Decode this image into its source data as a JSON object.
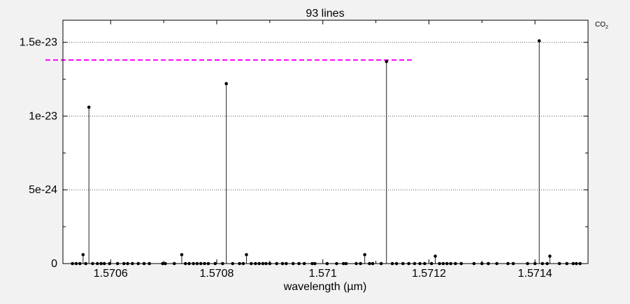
{
  "chart_data": {
    "type": "scatter",
    "style": "stem",
    "title": "93 lines",
    "xlabel": "wavelength (µm)",
    "ylabel": "",
    "legend_label": "CO",
    "legend_subscript": "2",
    "xlim": [
      1.57051,
      1.5715
    ],
    "ylim": [
      0,
      1.65e-23
    ],
    "x_ticks": [
      1.5706,
      1.5708,
      1.571,
      1.5712,
      1.5714
    ],
    "x_tick_labels": [
      "1.5706",
      "1.5708",
      "1.571",
      "1.5712",
      "1.5714"
    ],
    "y_ticks": [
      0,
      5e-24,
      1e-23,
      1.5e-23
    ],
    "y_tick_labels": [
      "0",
      "5e-24",
      "1e-23",
      "1.5e-23"
    ],
    "y_minor_ticks": [
      2.5e-24,
      7.5e-24,
      1.25e-23
    ],
    "grid": "horizontal-dotted",
    "threshold": {
      "value": 1.38e-23,
      "x_start": 1.57051,
      "x_end": 1.57117,
      "color": "#ff00ff",
      "style": "dashed"
    },
    "marker_color": "#000000",
    "series": [
      {
        "x": [
          1.570528,
          1.570535,
          1.570542,
          1.570548,
          1.570553,
          1.570559,
          1.570566,
          1.570575,
          1.570582,
          1.570588,
          1.570598,
          1.570613,
          1.570625,
          1.570632,
          1.570641,
          1.570652,
          1.570663,
          1.570673,
          1.570698,
          1.570703,
          1.57072,
          1.570734,
          1.570741,
          1.570748,
          1.570756,
          1.570763,
          1.57077,
          1.570777,
          1.570784,
          1.570797,
          1.570811,
          1.570818,
          1.57083,
          1.570843,
          1.57085,
          1.570856,
          1.570865,
          1.570873,
          1.57088,
          1.570887,
          1.570893,
          1.5709,
          1.570913,
          1.570924,
          1.570931,
          1.570944,
          1.570955,
          1.570965,
          1.57098,
          1.570985,
          1.571008,
          1.571026,
          1.571039,
          1.571044,
          1.571063,
          1.571071,
          1.571079,
          1.571088,
          1.571094,
          1.57111,
          1.57112,
          1.571131,
          1.571139,
          1.571151,
          1.571162,
          1.571173,
          1.571183,
          1.571192,
          1.571205,
          1.571212,
          1.57122,
          1.571227,
          1.571234,
          1.571241,
          1.57125,
          1.571261,
          1.571285,
          1.5713,
          1.571312,
          1.571328,
          1.571349,
          1.571359,
          1.571386,
          1.5714,
          1.571408,
          1.571414,
          1.571423,
          1.571428,
          1.571446,
          1.57146,
          1.571472,
          1.571478,
          1.571485
        ],
        "y": [
          0,
          0,
          0,
          6e-25,
          0,
          1.06e-23,
          0,
          0,
          0,
          0,
          0,
          0,
          0,
          0,
          0,
          0,
          0,
          0,
          0,
          0,
          0,
          6e-25,
          0,
          0,
          0,
          0,
          0,
          0,
          0,
          0,
          0,
          1.22e-23,
          0,
          0,
          0,
          6e-25,
          0,
          0,
          0,
          0,
          0,
          0,
          0,
          0,
          0,
          0,
          0,
          0,
          0,
          0,
          0,
          0,
          0,
          0,
          0,
          0,
          6e-25,
          0,
          0,
          0,
          1.37e-23,
          0,
          0,
          0,
          0,
          0,
          0,
          0,
          0,
          5e-25,
          0,
          0,
          0,
          0,
          0,
          0,
          0,
          0,
          0,
          0,
          0,
          0,
          0,
          0,
          1.51e-23,
          0,
          0,
          5e-25,
          0,
          0,
          0,
          0,
          0
        ]
      }
    ]
  }
}
